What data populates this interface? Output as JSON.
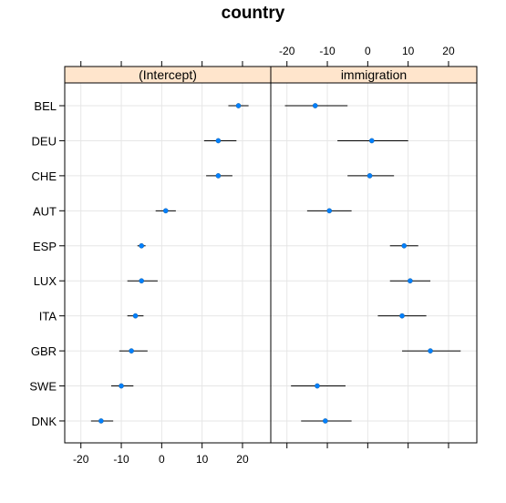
{
  "chart_data": {
    "type": "dotplot",
    "title": "country",
    "categories": [
      "BEL",
      "DEU",
      "CHE",
      "AUT",
      "ESP",
      "LUX",
      "ITA",
      "GBR",
      "SWE",
      "DNK"
    ],
    "xlim": [
      -24,
      27
    ],
    "xticks": [
      -20,
      -10,
      0,
      10,
      20
    ],
    "grid": true,
    "panels": [
      {
        "name": "(Intercept)",
        "estimate": [
          19,
          14,
          14,
          1,
          -5,
          -5,
          -6.5,
          -7.5,
          -10,
          -15
        ],
        "lower": [
          16.5,
          10.5,
          11,
          -1.5,
          -6,
          -8.5,
          -8.5,
          -10.5,
          -12.5,
          -17.5
        ],
        "upper": [
          21.5,
          18.5,
          17.5,
          3.5,
          -4,
          -1,
          -4.5,
          -3.5,
          -7,
          -12
        ]
      },
      {
        "name": "immigration",
        "estimate": [
          -13,
          1,
          0.5,
          -9.5,
          9,
          10.5,
          8.5,
          15.5,
          -12.5,
          -10.5
        ],
        "lower": [
          -20.5,
          -7.5,
          -5,
          -15,
          5.5,
          5.5,
          2.5,
          8.5,
          -19,
          -16.5
        ],
        "upper": [
          -5,
          10,
          6.5,
          -4,
          12.5,
          15.5,
          14.5,
          23,
          -5.5,
          -4
        ]
      }
    ],
    "colors": {
      "point": "#0080ff",
      "strip": "#ffe5cc",
      "grid": "#e6e6e6"
    }
  }
}
